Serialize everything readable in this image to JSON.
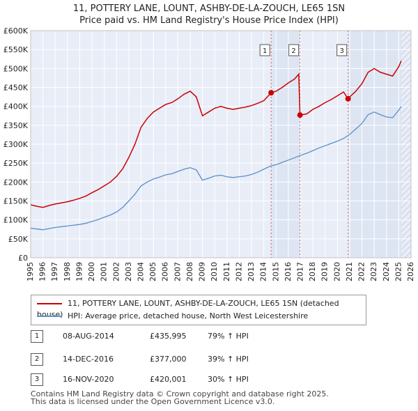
{
  "header": {
    "line1": "11, POTTERY LANE, LOUNT, ASHBY-DE-LA-ZOUCH, LE65 1SN",
    "line2": "Price paid vs. HM Land Registry's House Price Index (HPI)"
  },
  "legend": {
    "property_label": "11, POTTERY LANE, LOUNT, ASHBY-DE-LA-ZOUCH, LE65 1SN (detached house)",
    "hpi_label": "HPI: Average price, detached house, North West Leicestershire"
  },
  "transactions": [
    {
      "num": "1",
      "date": "08-AUG-2014",
      "price": "£435,995",
      "hpi": "79% ↑ HPI"
    },
    {
      "num": "2",
      "date": "14-DEC-2016",
      "price": "£377,000",
      "hpi": "39% ↑ HPI"
    },
    {
      "num": "3",
      "date": "16-NOV-2020",
      "price": "£420,001",
      "hpi": "30% ↑ HPI"
    }
  ],
  "footer": {
    "line1": "Contains HM Land Registry data © Crown copyright and database right 2025.",
    "line2": "This data is licensed under the Open Government Licence v3.0."
  },
  "colors": {
    "property": "#cc0000",
    "hpi": "#5b8ec9",
    "plot_bg": "#e8edf7",
    "shade": "#dde5f3",
    "grid": "#ffffff"
  },
  "chart_data": {
    "type": "line",
    "xlim": [
      1995,
      2026
    ],
    "ylim": [
      0,
      600000
    ],
    "x_ticks": [
      "1995",
      "1996",
      "1997",
      "1998",
      "1999",
      "2000",
      "2001",
      "2002",
      "2003",
      "2004",
      "2005",
      "2006",
      "2007",
      "2008",
      "2009",
      "2010",
      "2011",
      "2012",
      "2013",
      "2014",
      "2015",
      "2016",
      "2017",
      "2018",
      "2019",
      "2020",
      "2021",
      "2022",
      "2023",
      "2024",
      "2025",
      "2026"
    ],
    "y_ticks": [
      {
        "value": 0,
        "label": "£0"
      },
      {
        "value": 50000,
        "label": "£50K"
      },
      {
        "value": 100000,
        "label": "£100K"
      },
      {
        "value": 150000,
        "label": "£150K"
      },
      {
        "value": 200000,
        "label": "£200K"
      },
      {
        "value": 250000,
        "label": "£250K"
      },
      {
        "value": 300000,
        "label": "£300K"
      },
      {
        "value": 350000,
        "label": "£350K"
      },
      {
        "value": 400000,
        "label": "£400K"
      },
      {
        "value": 450000,
        "label": "£450K"
      },
      {
        "value": 500000,
        "label": "£500K"
      },
      {
        "value": 550000,
        "label": "£550K"
      },
      {
        "value": 600000,
        "label": "£600K"
      }
    ],
    "shaded_ranges": [
      [
        2014.6,
        2016.95
      ],
      [
        2020.87,
        2025.2
      ]
    ],
    "hatched_from": 2025.2,
    "sale_markers": [
      {
        "label": "1",
        "x": 2014.6,
        "y": 435995
      },
      {
        "label": "2",
        "x": 2016.95,
        "y": 377000
      },
      {
        "label": "3",
        "x": 2020.87,
        "y": 420001
      }
    ],
    "series": [
      {
        "name": "11, POTTERY LANE, LOUNT, ASHBY-DE-LA-ZOUCH, LE65 1SN (detached house)",
        "color": "#cc0000",
        "points": [
          [
            1995.0,
            140000
          ],
          [
            1995.5,
            136000
          ],
          [
            1996.0,
            133000
          ],
          [
            1996.5,
            138000
          ],
          [
            1997.0,
            142000
          ],
          [
            1997.5,
            145000
          ],
          [
            1998.0,
            148000
          ],
          [
            1998.5,
            152000
          ],
          [
            1999.0,
            157000
          ],
          [
            1999.5,
            163000
          ],
          [
            2000.0,
            172000
          ],
          [
            2000.5,
            180000
          ],
          [
            2001.0,
            190000
          ],
          [
            2001.5,
            200000
          ],
          [
            2002.0,
            215000
          ],
          [
            2002.5,
            235000
          ],
          [
            2003.0,
            265000
          ],
          [
            2003.5,
            300000
          ],
          [
            2004.0,
            345000
          ],
          [
            2004.5,
            368000
          ],
          [
            2005.0,
            385000
          ],
          [
            2005.5,
            395000
          ],
          [
            2006.0,
            405000
          ],
          [
            2006.5,
            410000
          ],
          [
            2007.0,
            420000
          ],
          [
            2007.5,
            432000
          ],
          [
            2008.0,
            440000
          ],
          [
            2008.5,
            425000
          ],
          [
            2009.0,
            375000
          ],
          [
            2009.5,
            385000
          ],
          [
            2010.0,
            395000
          ],
          [
            2010.5,
            400000
          ],
          [
            2011.0,
            395000
          ],
          [
            2011.5,
            392000
          ],
          [
            2012.0,
            395000
          ],
          [
            2012.5,
            398000
          ],
          [
            2013.0,
            402000
          ],
          [
            2013.5,
            408000
          ],
          [
            2014.0,
            415000
          ],
          [
            2014.6,
            435995
          ],
          [
            2015.0,
            440000
          ],
          [
            2015.5,
            450000
          ],
          [
            2016.0,
            462000
          ],
          [
            2016.5,
            472000
          ],
          [
            2016.85,
            485000
          ],
          [
            2016.95,
            377000
          ],
          [
            2017.5,
            380000
          ],
          [
            2018.0,
            392000
          ],
          [
            2018.5,
            400000
          ],
          [
            2019.0,
            410000
          ],
          [
            2019.5,
            418000
          ],
          [
            2020.0,
            428000
          ],
          [
            2020.5,
            438000
          ],
          [
            2020.87,
            420001
          ],
          [
            2021.0,
            425000
          ],
          [
            2021.5,
            440000
          ],
          [
            2022.0,
            460000
          ],
          [
            2022.5,
            490000
          ],
          [
            2023.0,
            500000
          ],
          [
            2023.5,
            490000
          ],
          [
            2024.0,
            485000
          ],
          [
            2024.5,
            480000
          ],
          [
            2025.0,
            505000
          ],
          [
            2025.2,
            520000
          ]
        ]
      },
      {
        "name": "HPI: Average price, detached house, North West Leicestershire",
        "color": "#5b8ec9",
        "points": [
          [
            1995.0,
            78000
          ],
          [
            1995.5,
            76000
          ],
          [
            1996.0,
            74000
          ],
          [
            1996.5,
            77000
          ],
          [
            1997.0,
            80000
          ],
          [
            1997.5,
            82000
          ],
          [
            1998.0,
            84000
          ],
          [
            1998.5,
            86000
          ],
          [
            1999.0,
            88000
          ],
          [
            1999.5,
            91000
          ],
          [
            2000.0,
            96000
          ],
          [
            2000.5,
            101000
          ],
          [
            2001.0,
            107000
          ],
          [
            2001.5,
            113000
          ],
          [
            2002.0,
            121000
          ],
          [
            2002.5,
            133000
          ],
          [
            2003.0,
            150000
          ],
          [
            2003.5,
            168000
          ],
          [
            2004.0,
            190000
          ],
          [
            2004.5,
            200000
          ],
          [
            2005.0,
            208000
          ],
          [
            2005.5,
            213000
          ],
          [
            2006.0,
            219000
          ],
          [
            2006.5,
            222000
          ],
          [
            2007.0,
            228000
          ],
          [
            2007.5,
            234000
          ],
          [
            2008.0,
            238000
          ],
          [
            2008.5,
            232000
          ],
          [
            2009.0,
            205000
          ],
          [
            2009.5,
            210000
          ],
          [
            2010.0,
            216000
          ],
          [
            2010.5,
            218000
          ],
          [
            2011.0,
            214000
          ],
          [
            2011.5,
            212000
          ],
          [
            2012.0,
            214000
          ],
          [
            2012.5,
            216000
          ],
          [
            2013.0,
            220000
          ],
          [
            2013.5,
            226000
          ],
          [
            2014.0,
            234000
          ],
          [
            2014.6,
            243000
          ],
          [
            2015.0,
            246000
          ],
          [
            2015.5,
            252000
          ],
          [
            2016.0,
            258000
          ],
          [
            2016.5,
            264000
          ],
          [
            2016.95,
            270000
          ],
          [
            2017.5,
            276000
          ],
          [
            2018.0,
            283000
          ],
          [
            2018.5,
            290000
          ],
          [
            2019.0,
            296000
          ],
          [
            2019.5,
            302000
          ],
          [
            2020.0,
            308000
          ],
          [
            2020.5,
            315000
          ],
          [
            2020.87,
            323000
          ],
          [
            2021.0,
            326000
          ],
          [
            2021.5,
            340000
          ],
          [
            2022.0,
            355000
          ],
          [
            2022.5,
            378000
          ],
          [
            2023.0,
            385000
          ],
          [
            2023.5,
            378000
          ],
          [
            2024.0,
            372000
          ],
          [
            2024.5,
            370000
          ],
          [
            2025.0,
            390000
          ],
          [
            2025.2,
            400000
          ]
        ]
      }
    ]
  }
}
